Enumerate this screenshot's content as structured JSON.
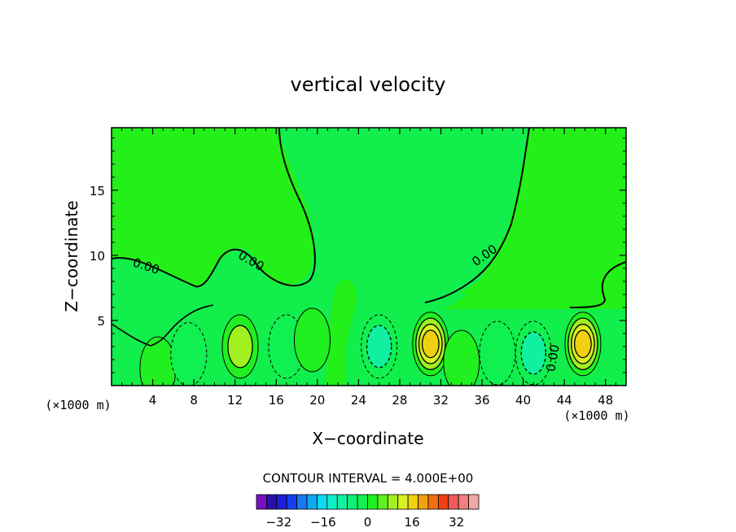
{
  "chart_data": {
    "type": "heatmap",
    "title": "vertical velocity",
    "xlabel": "X−coordinate",
    "ylabel": "Z−coordinate",
    "x_unit_left": "(×1000 m)",
    "x_unit_right": "(×1000 m)",
    "xlim": [
      0,
      50
    ],
    "ylim": [
      0,
      19.8
    ],
    "x_ticks": [
      "4",
      "8",
      "12",
      "16",
      "20",
      "24",
      "28",
      "32",
      "36",
      "40",
      "44",
      "48"
    ],
    "x_tick_values": [
      4,
      8,
      12,
      16,
      20,
      24,
      28,
      32,
      36,
      40,
      44,
      48
    ],
    "y_ticks": [
      "5",
      "10",
      "15"
    ],
    "y_tick_values": [
      5,
      10,
      15
    ],
    "contour_label": "0.00",
    "contour_interval_text": "CONTOUR INTERVAL = 4.000E+00",
    "colorbar": {
      "tick_labels": [
        "−32",
        "−16",
        "0",
        "16",
        "32"
      ],
      "tick_values": [
        -32,
        -16,
        0,
        16,
        32
      ],
      "range": [
        -40,
        40
      ],
      "colors": [
        "#7a10c0",
        "#2a10a8",
        "#1c20d8",
        "#1440f0",
        "#1a78f0",
        "#10a8f0",
        "#10d8f0",
        "#10f0c8",
        "#10f0a0",
        "#10f078",
        "#10f050",
        "#20f020",
        "#60f020",
        "#a0f020",
        "#d8f020",
        "#f0d010",
        "#f0a010",
        "#f07010",
        "#f04010",
        "#f05a5a",
        "#f08080",
        "#f0a8a8"
      ]
    },
    "features": [
      {
        "kind": "updraft",
        "x": 4.5,
        "z": 1.3,
        "w": 4
      },
      {
        "kind": "downdraft",
        "x": 7.5,
        "z": 2.4,
        "w": -4
      },
      {
        "kind": "updraft",
        "x": 12.5,
        "z": 3.0,
        "w": 8
      },
      {
        "kind": "downdraft",
        "x": 17.0,
        "z": 3.0,
        "w": -4
      },
      {
        "kind": "updraft",
        "x": 19.5,
        "z": 3.5,
        "w": 4
      },
      {
        "kind": "downdraft",
        "x": 26.0,
        "z": 3.0,
        "w": -8
      },
      {
        "kind": "updraft",
        "x": 31.0,
        "z": 3.2,
        "w": 16
      },
      {
        "kind": "updraft",
        "x": 34.0,
        "z": 1.8,
        "w": 4
      },
      {
        "kind": "downdraft",
        "x": 37.5,
        "z": 2.5,
        "w": -4
      },
      {
        "kind": "downdraft",
        "x": 41.0,
        "z": 2.5,
        "w": -8
      },
      {
        "kind": "updraft",
        "x": 45.8,
        "z": 3.2,
        "w": 16
      }
    ]
  }
}
